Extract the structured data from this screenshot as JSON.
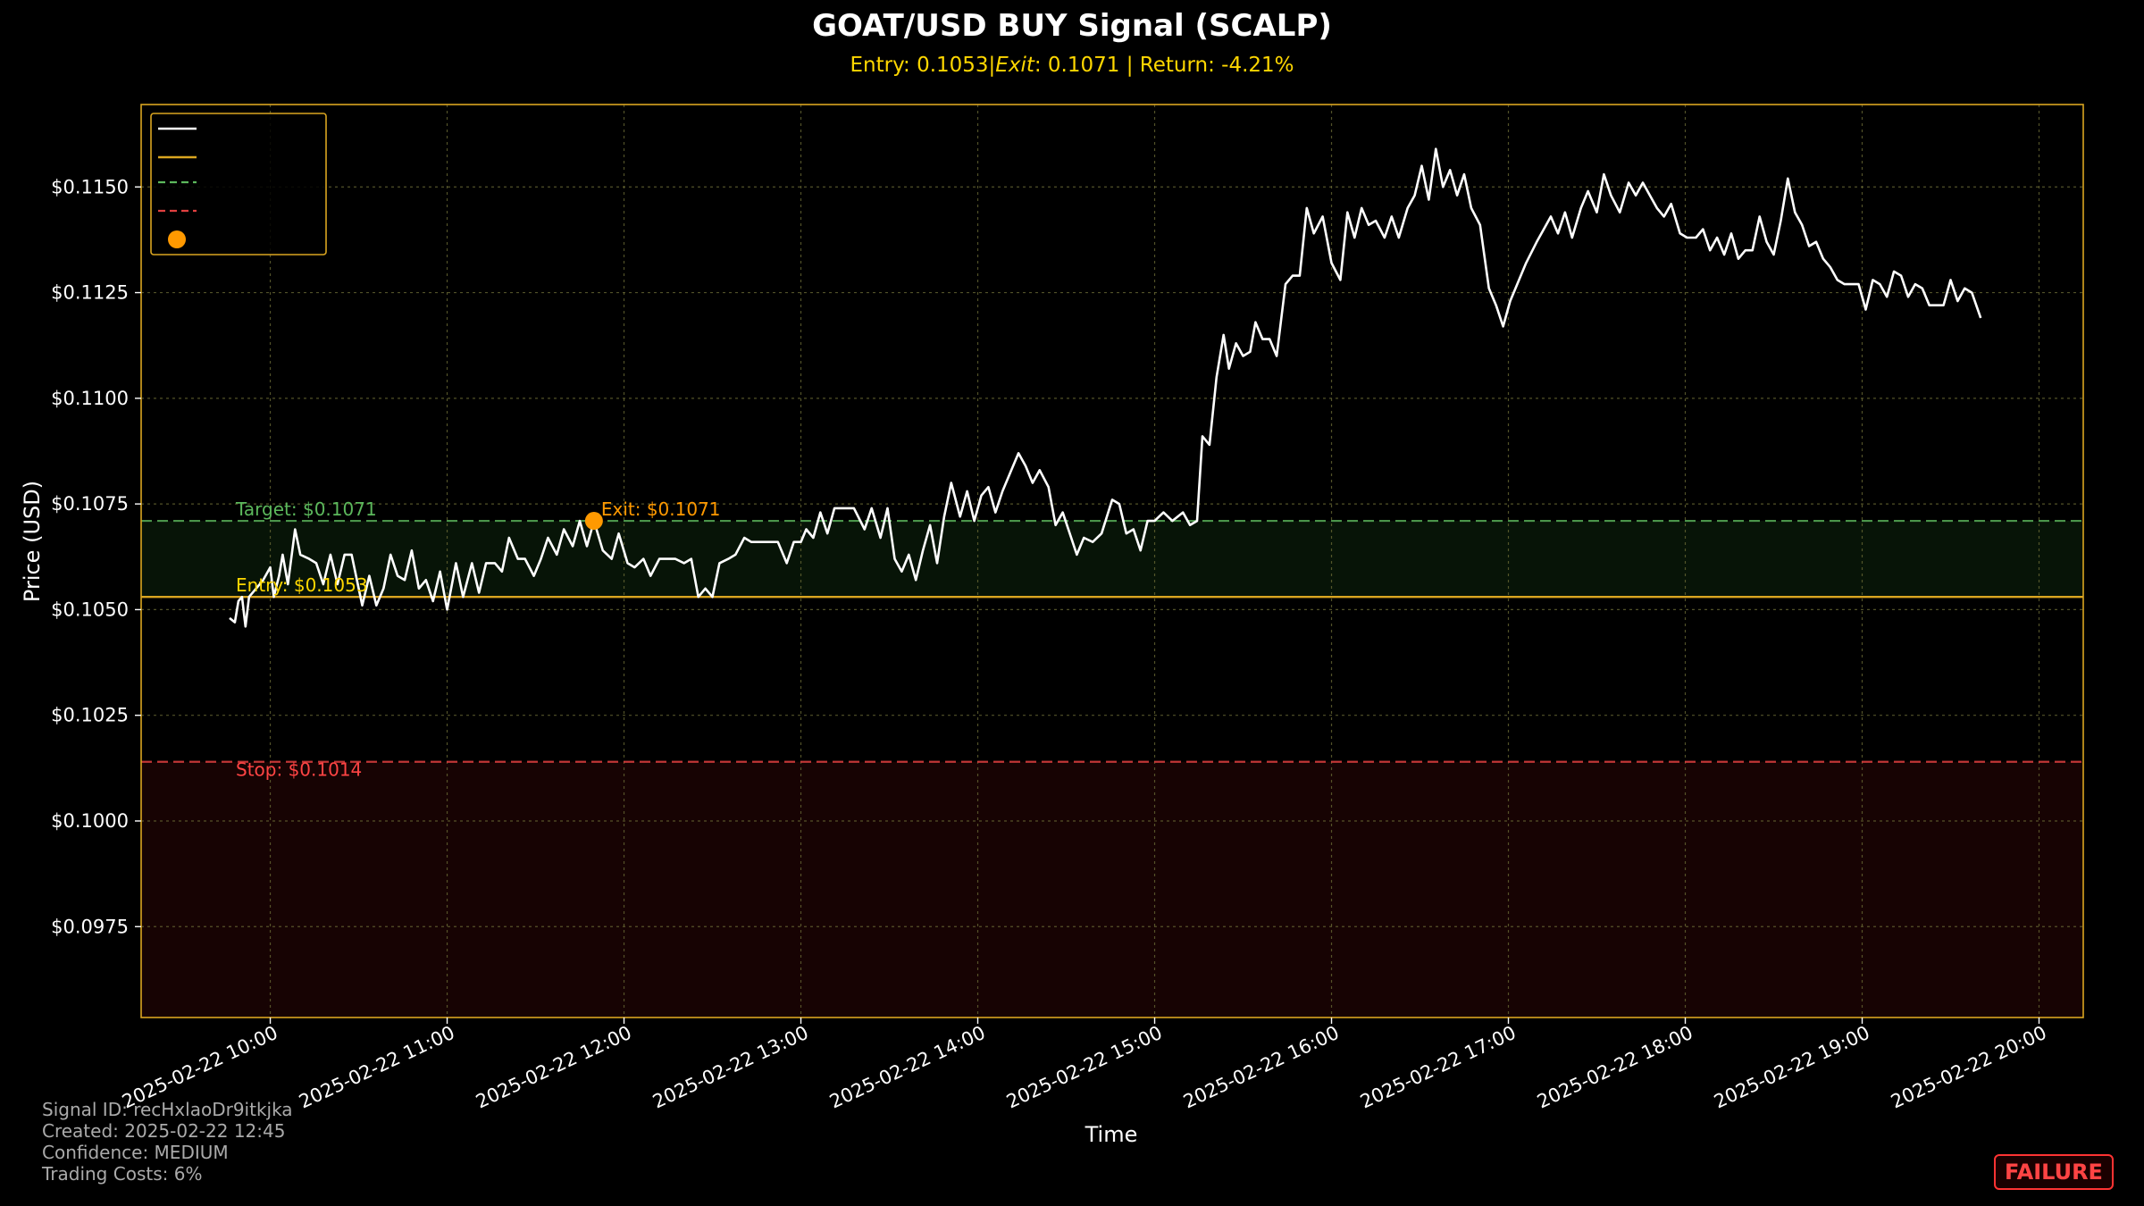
{
  "chart_data": {
    "type": "line",
    "title": "GOAT/USD BUY Signal (SCALP)",
    "subtitle": "Entry: 0.1053$|$Exit$: 0.1071 | Return: -4.21%",
    "subtitle_parts": {
      "a": "Entry: 0.1053|",
      "b": "Exit",
      "c": ": 0.1071 | Return: -4.21%"
    },
    "xlabel": "Time",
    "ylabel": "Price (USD)",
    "ylim": [
      0.09535,
      0.11695
    ],
    "yticks": [
      0.0975,
      0.1,
      0.1025,
      0.105,
      0.1075,
      0.11,
      0.1125,
      0.115
    ],
    "ytick_labels": [
      "$0.0975",
      "$0.1000",
      "$0.1025",
      "$0.1050",
      "$0.1075",
      "$0.1100",
      "$0.1125",
      "$0.1150"
    ],
    "xlim_hours": [
      9.27,
      20.25
    ],
    "xticks_hours": [
      10,
      11,
      12,
      13,
      14,
      15,
      16,
      17,
      18,
      19,
      20
    ],
    "xtick_labels": [
      "2025-02-22 10:00",
      "2025-02-22 11:00",
      "2025-02-22 12:00",
      "2025-02-22 13:00",
      "2025-02-22 14:00",
      "2025-02-22 15:00",
      "2025-02-22 16:00",
      "2025-02-22 17:00",
      "2025-02-22 18:00",
      "2025-02-22 19:00",
      "2025-02-22 20:00"
    ],
    "grid": true,
    "legend": "upper-left",
    "series": [
      {
        "color": "#ffffff",
        "points": [
          [
            9.77,
            0.1048
          ],
          [
            9.8,
            0.1047
          ],
          [
            9.82,
            0.1052
          ],
          [
            9.84,
            0.1053
          ],
          [
            9.86,
            0.1046
          ],
          [
            9.88,
            0.1053
          ],
          [
            9.92,
            0.1055
          ],
          [
            9.96,
            0.1057
          ],
          [
            10.0,
            0.106
          ],
          [
            10.02,
            0.1053
          ],
          [
            10.05,
            0.1058
          ],
          [
            10.07,
            0.1063
          ],
          [
            10.1,
            0.1056
          ],
          [
            10.14,
            0.1069
          ],
          [
            10.17,
            0.1063
          ],
          [
            10.22,
            0.1062
          ],
          [
            10.26,
            0.1061
          ],
          [
            10.3,
            0.1056
          ],
          [
            10.34,
            0.1063
          ],
          [
            10.38,
            0.1056
          ],
          [
            10.42,
            0.1063
          ],
          [
            10.46,
            0.1063
          ],
          [
            10.52,
            0.1051
          ],
          [
            10.56,
            0.1058
          ],
          [
            10.6,
            0.1051
          ],
          [
            10.64,
            0.1055
          ],
          [
            10.68,
            0.1063
          ],
          [
            10.72,
            0.1058
          ],
          [
            10.76,
            0.1057
          ],
          [
            10.8,
            0.1064
          ],
          [
            10.84,
            0.1055
          ],
          [
            10.88,
            0.1057
          ],
          [
            10.92,
            0.1052
          ],
          [
            10.96,
            0.1059
          ],
          [
            11.0,
            0.105
          ],
          [
            11.05,
            0.1061
          ],
          [
            11.09,
            0.1053
          ],
          [
            11.14,
            0.1061
          ],
          [
            11.18,
            0.1054
          ],
          [
            11.22,
            0.1061
          ],
          [
            11.27,
            0.1061
          ],
          [
            11.31,
            0.1059
          ],
          [
            11.35,
            0.1067
          ],
          [
            11.4,
            0.1062
          ],
          [
            11.44,
            0.1062
          ],
          [
            11.49,
            0.1058
          ],
          [
            11.53,
            0.1062
          ],
          [
            11.57,
            0.1067
          ],
          [
            11.62,
            0.1063
          ],
          [
            11.66,
            0.1069
          ],
          [
            11.71,
            0.1065
          ],
          [
            11.75,
            0.1071
          ],
          [
            11.79,
            0.1065
          ],
          [
            11.83,
            0.1071
          ],
          [
            11.88,
            0.1064
          ],
          [
            11.93,
            0.1062
          ],
          [
            11.97,
            0.1068
          ],
          [
            12.02,
            0.1061
          ],
          [
            12.06,
            0.106
          ],
          [
            12.11,
            0.1062
          ],
          [
            12.15,
            0.1058
          ],
          [
            12.2,
            0.1062
          ],
          [
            12.25,
            0.1062
          ],
          [
            12.29,
            0.1062
          ],
          [
            12.34,
            0.1061
          ],
          [
            12.38,
            0.1062
          ],
          [
            12.42,
            0.1053
          ],
          [
            12.46,
            0.1055
          ],
          [
            12.5,
            0.1053
          ],
          [
            12.54,
            0.1061
          ],
          [
            12.59,
            0.1062
          ],
          [
            12.63,
            0.1063
          ],
          [
            12.68,
            0.1067
          ],
          [
            12.72,
            0.1066
          ],
          [
            12.77,
            0.1066
          ],
          [
            12.82,
            0.1066
          ],
          [
            12.87,
            0.1066
          ],
          [
            12.92,
            0.1061
          ],
          [
            12.96,
            0.1066
          ],
          [
            13.0,
            0.1066
          ],
          [
            13.03,
            0.1069
          ],
          [
            13.07,
            0.1067
          ],
          [
            13.11,
            0.1073
          ],
          [
            13.15,
            0.1068
          ],
          [
            13.19,
            0.1074
          ],
          [
            13.24,
            0.1074
          ],
          [
            13.3,
            0.1074
          ],
          [
            13.36,
            0.1069
          ],
          [
            13.4,
            0.1074
          ],
          [
            13.45,
            0.1067
          ],
          [
            13.49,
            0.1074
          ],
          [
            13.53,
            0.1062
          ],
          [
            13.57,
            0.1059
          ],
          [
            13.61,
            0.1063
          ],
          [
            13.65,
            0.1057
          ],
          [
            13.69,
            0.1064
          ],
          [
            13.73,
            0.107
          ],
          [
            13.77,
            0.1061
          ],
          [
            13.81,
            0.1072
          ],
          [
            13.85,
            0.108
          ],
          [
            13.9,
            0.1072
          ],
          [
            13.94,
            0.1078
          ],
          [
            13.98,
            0.1071
          ],
          [
            14.02,
            0.1077
          ],
          [
            14.06,
            0.1079
          ],
          [
            14.1,
            0.1073
          ],
          [
            14.14,
            0.1078
          ],
          [
            14.19,
            0.1083
          ],
          [
            14.23,
            0.1087
          ],
          [
            14.27,
            0.1084
          ],
          [
            14.31,
            0.108
          ],
          [
            14.35,
            0.1083
          ],
          [
            14.4,
            0.1079
          ],
          [
            14.44,
            0.107
          ],
          [
            14.48,
            0.1073
          ],
          [
            14.52,
            0.1068
          ],
          [
            14.56,
            0.1063
          ],
          [
            14.6,
            0.1067
          ],
          [
            14.65,
            0.1066
          ],
          [
            14.7,
            0.1068
          ],
          [
            14.76,
            0.1076
          ],
          [
            14.8,
            0.1075
          ],
          [
            14.84,
            0.1068
          ],
          [
            14.88,
            0.1069
          ],
          [
            14.92,
            0.1064
          ],
          [
            14.96,
            0.1071
          ],
          [
            15.0,
            0.1071
          ],
          [
            15.05,
            0.1073
          ],
          [
            15.1,
            0.1071
          ],
          [
            15.16,
            0.1073
          ],
          [
            15.2,
            0.107
          ],
          [
            15.24,
            0.1071
          ],
          [
            15.27,
            0.1091
          ],
          [
            15.31,
            0.1089
          ],
          [
            15.35,
            0.1105
          ],
          [
            15.39,
            0.1115
          ],
          [
            15.42,
            0.1107
          ],
          [
            15.46,
            0.1113
          ],
          [
            15.5,
            0.111
          ],
          [
            15.54,
            0.1111
          ],
          [
            15.57,
            0.1118
          ],
          [
            15.61,
            0.1114
          ],
          [
            15.65,
            0.1114
          ],
          [
            15.69,
            0.111
          ],
          [
            15.74,
            0.1127
          ],
          [
            15.78,
            0.1129
          ],
          [
            15.82,
            0.1129
          ],
          [
            15.86,
            0.1145
          ],
          [
            15.9,
            0.1139
          ],
          [
            15.95,
            0.1143
          ],
          [
            16.0,
            0.1132
          ],
          [
            16.05,
            0.1128
          ],
          [
            16.09,
            0.1144
          ],
          [
            16.13,
            0.1138
          ],
          [
            16.17,
            0.1145
          ],
          [
            16.21,
            0.1141
          ],
          [
            16.25,
            0.1142
          ],
          [
            16.3,
            0.1138
          ],
          [
            16.34,
            0.1143
          ],
          [
            16.38,
            0.1138
          ],
          [
            16.43,
            0.1145
          ],
          [
            16.47,
            0.1148
          ],
          [
            16.51,
            0.1155
          ],
          [
            16.55,
            0.1147
          ],
          [
            16.59,
            0.1159
          ],
          [
            16.63,
            0.115
          ],
          [
            16.67,
            0.1154
          ],
          [
            16.71,
            0.1148
          ],
          [
            16.75,
            0.1153
          ],
          [
            16.79,
            0.1145
          ],
          [
            16.84,
            0.1141
          ],
          [
            16.89,
            0.1126
          ],
          [
            16.93,
            0.1122
          ],
          [
            16.97,
            0.1117
          ],
          [
            17.01,
            0.1123
          ],
          [
            17.05,
            0.1127
          ],
          [
            17.1,
            0.1132
          ],
          [
            17.16,
            0.1137
          ],
          [
            17.2,
            0.114
          ],
          [
            17.24,
            0.1143
          ],
          [
            17.28,
            0.1139
          ],
          [
            17.32,
            0.1144
          ],
          [
            17.36,
            0.1138
          ],
          [
            17.41,
            0.1145
          ],
          [
            17.45,
            0.1149
          ],
          [
            17.5,
            0.1144
          ],
          [
            17.54,
            0.1153
          ],
          [
            17.58,
            0.1148
          ],
          [
            17.63,
            0.1144
          ],
          [
            17.68,
            0.1151
          ],
          [
            17.72,
            0.1148
          ],
          [
            17.76,
            0.1151
          ],
          [
            17.8,
            0.1148
          ],
          [
            17.84,
            0.1145
          ],
          [
            17.88,
            0.1143
          ],
          [
            17.92,
            0.1146
          ],
          [
            17.97,
            0.1139
          ],
          [
            18.01,
            0.1138
          ],
          [
            18.06,
            0.1138
          ],
          [
            18.1,
            0.114
          ],
          [
            18.14,
            0.1135
          ],
          [
            18.18,
            0.1138
          ],
          [
            18.22,
            0.1134
          ],
          [
            18.26,
            0.1139
          ],
          [
            18.3,
            0.1133
          ],
          [
            18.34,
            0.1135
          ],
          [
            18.38,
            0.1135
          ],
          [
            18.42,
            0.1143
          ],
          [
            18.46,
            0.1137
          ],
          [
            18.5,
            0.1134
          ],
          [
            18.54,
            0.1142
          ],
          [
            18.58,
            0.1152
          ],
          [
            18.62,
            0.1144
          ],
          [
            18.66,
            0.1141
          ],
          [
            18.7,
            0.1136
          ],
          [
            18.74,
            0.1137
          ],
          [
            18.78,
            0.1133
          ],
          [
            18.82,
            0.1131
          ],
          [
            18.86,
            0.1128
          ],
          [
            18.9,
            0.1127
          ],
          [
            18.94,
            0.1127
          ],
          [
            18.98,
            0.1127
          ],
          [
            19.02,
            0.1121
          ],
          [
            19.06,
            0.1128
          ],
          [
            19.1,
            0.1127
          ],
          [
            19.14,
            0.1124
          ],
          [
            19.18,
            0.113
          ],
          [
            19.22,
            0.1129
          ],
          [
            19.26,
            0.1124
          ],
          [
            19.3,
            0.1127
          ],
          [
            19.34,
            0.1126
          ],
          [
            19.38,
            0.1122
          ],
          [
            19.42,
            0.1122
          ],
          [
            19.46,
            0.1122
          ],
          [
            19.5,
            0.1128
          ],
          [
            19.54,
            0.1123
          ],
          [
            19.58,
            0.1126
          ],
          [
            19.62,
            0.1125
          ],
          [
            19.67,
            0.1119
          ]
        ]
      },
      {
        "color": "#daa520"
      },
      {
        "color": "#5cb85c"
      },
      {
        "color": "#e04040"
      },
      {
        "color": "#ff9900"
      }
    ],
    "levels": {
      "entry": {
        "value": 0.1053,
        "label": "Entry: $0.1053",
        "color": "#daa520",
        "text_color": "#ffd700"
      },
      "target": {
        "value": 0.1071,
        "label": "Target: $0.1071",
        "color": "#5cb85c",
        "text_color": "#5cb85c"
      },
      "stop": {
        "value": 0.1014,
        "label": "Stop: $0.1014",
        "color": "#e04040",
        "text_color": "#ff4444"
      }
    },
    "exit_point": {
      "x_hours": 11.83,
      "value": 0.1071,
      "label": "Exit: $0.1071",
      "color": "#ff9900"
    }
  },
  "footer": {
    "signal_id": "Signal ID: recHxlaoDr9itkjka",
    "created": "Created: 2025-02-22 12:45",
    "confidence": "Confidence: MEDIUM",
    "trading_costs": "Trading Costs: 6%"
  },
  "badge": {
    "text": "FAILURE",
    "color": "#ff4444"
  },
  "colors": {
    "background": "#000000",
    "frame": "#daa520",
    "grid": "#666633"
  }
}
